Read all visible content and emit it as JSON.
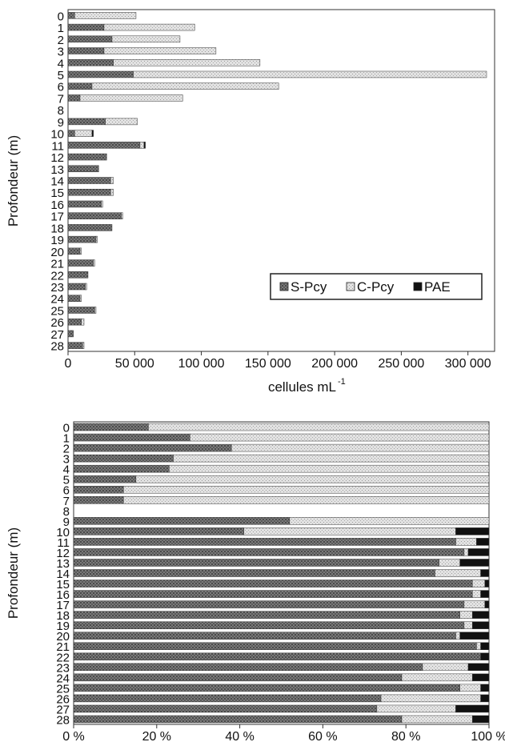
{
  "chart_data": [
    {
      "type": "bar",
      "orientation": "horizontal",
      "stacked": true,
      "xlabel": "cellules mL",
      "xlabel_superscript": "-1",
      "ylabel": "Profondeur (m)",
      "xlim": [
        0,
        320000
      ],
      "xticks": [
        0,
        50000,
        100000,
        150000,
        200000,
        250000,
        300000
      ],
      "xtick_labels": [
        "0",
        "50 000",
        "100 000",
        "150 000",
        "200 000",
        "250 000",
        "300 000"
      ],
      "categories": [
        "0",
        "1",
        "2",
        "3",
        "4",
        "5",
        "6",
        "7",
        "8",
        "9",
        "10",
        "11",
        "12",
        "13",
        "14",
        "15",
        "16",
        "17",
        "18",
        "19",
        "20",
        "21",
        "22",
        "23",
        "24",
        "25",
        "26",
        "27",
        "28"
      ],
      "series": [
        {
          "name": "S-Pcy",
          "values": [
            5000,
            27000,
            33000,
            27000,
            34000,
            49000,
            18000,
            9000,
            0,
            28000,
            5000,
            54000,
            29000,
            23000,
            32000,
            32000,
            25000,
            40000,
            33000,
            21000,
            9000,
            19000,
            15000,
            13000,
            9000,
            20000,
            10000,
            4000,
            11000
          ]
        },
        {
          "name": "C-Pcy",
          "values": [
            46000,
            68000,
            51000,
            84000,
            110000,
            265000,
            140000,
            77000,
            0,
            24000,
            13000,
            3000,
            0,
            0,
            2000,
            2000,
            1000,
            1000,
            0,
            1000,
            1000,
            1000,
            0,
            1000,
            1000,
            1000,
            2000,
            0,
            1000
          ]
        },
        {
          "name": "PAE",
          "values": [
            0,
            0,
            0,
            0,
            0,
            0,
            0,
            0,
            0,
            0,
            1000,
            1000,
            0,
            0,
            0,
            0,
            0,
            0,
            0,
            0,
            0,
            0,
            0,
            0,
            0,
            0,
            0,
            0,
            0
          ]
        }
      ],
      "legend": {
        "position": "bottom-right",
        "entries": [
          "S-Pcy",
          "C-Pcy",
          "PAE"
        ]
      },
      "grid": false
    },
    {
      "type": "bar",
      "orientation": "horizontal",
      "stacked": true,
      "percent": true,
      "ylabel": "Profondeur (m)",
      "xlim": [
        0,
        100
      ],
      "xticks": [
        0,
        20,
        40,
        60,
        80,
        100
      ],
      "xtick_labels": [
        "0 %",
        "20 %",
        "40 %",
        "60 %",
        "80 %",
        "100 %"
      ],
      "categories": [
        "0",
        "1",
        "2",
        "3",
        "4",
        "5",
        "6",
        "7",
        "8",
        "9",
        "10",
        "11",
        "12",
        "13",
        "14",
        "15",
        "16",
        "17",
        "18",
        "19",
        "20",
        "21",
        "22",
        "23",
        "24",
        "25",
        "26",
        "27",
        "28"
      ],
      "series": [
        {
          "name": "S-Pcy",
          "values": [
            18,
            28,
            38,
            24,
            23,
            15,
            12,
            12,
            0,
            52,
            41,
            92,
            94,
            88,
            87,
            96,
            96,
            94,
            93,
            94,
            92,
            97,
            98,
            84,
            79,
            93,
            74,
            73,
            79
          ]
        },
        {
          "name": "C-Pcy",
          "values": [
            82,
            72,
            62,
            76,
            77,
            85,
            88,
            88,
            0,
            48,
            51,
            5,
            1,
            5,
            11,
            3,
            2,
            5,
            3,
            2,
            1,
            1,
            0,
            11,
            17,
            5,
            24,
            19,
            17
          ]
        },
        {
          "name": "PAE",
          "values": [
            0,
            0,
            0,
            0,
            0,
            0,
            0,
            0,
            0,
            0,
            8,
            3,
            5,
            7,
            2,
            1,
            2,
            1,
            4,
            4,
            7,
            2,
            2,
            5,
            4,
            2,
            2,
            8,
            4
          ]
        }
      ],
      "grid": false
    }
  ],
  "colors": {
    "S-Pcy": "#6f6f6f",
    "C-Pcy": "#d9d9d9",
    "PAE": "#111111",
    "axis": "#222222"
  }
}
